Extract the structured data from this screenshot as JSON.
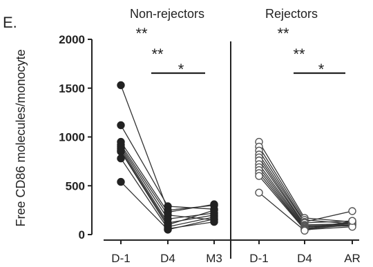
{
  "panel_label": "E.",
  "chart_data": {
    "type": "line",
    "ylabel": "Free CD86 molecules/monocyte",
    "ylim": [
      0,
      2000
    ],
    "yticks": [
      0,
      500,
      1000,
      1500,
      2000
    ],
    "grid": false,
    "panels": [
      {
        "title": "Non-rejectors",
        "categories": [
          "D-1",
          "D4",
          "M3"
        ],
        "marker": "filled-circle",
        "annotations": [
          {
            "text": "**",
            "from": "D-1",
            "to": "D4"
          },
          {
            "text": "**",
            "from": "D-1",
            "to": "M3"
          },
          {
            "text": "*",
            "from": "D4",
            "to": "M3",
            "bar": true
          }
        ],
        "series": [
          {
            "values": [
              1530,
              250,
              300
            ]
          },
          {
            "values": [
              1120,
              290,
              260
            ]
          },
          {
            "values": [
              950,
              230,
              310
            ]
          },
          {
            "values": [
              920,
              200,
              150
            ]
          },
          {
            "values": [
              900,
              160,
              220
            ]
          },
          {
            "values": [
              880,
              120,
              200
            ]
          },
          {
            "values": [
              860,
              100,
              250
            ]
          },
          {
            "values": [
              850,
              80,
              180
            ]
          },
          {
            "values": [
              780,
              60,
              130
            ]
          },
          {
            "values": [
              540,
              50,
              160
            ]
          }
        ]
      },
      {
        "title": "Rejectors",
        "categories": [
          "D-1",
          "D4",
          "AR"
        ],
        "marker": "open-circle",
        "annotations": [
          {
            "text": "**",
            "from": "D-1",
            "to": "D4"
          },
          {
            "text": "**",
            "from": "D-1",
            "to": "AR"
          },
          {
            "text": "*",
            "from": "D4",
            "to": "AR",
            "bar": true
          }
        ],
        "series": [
          {
            "values": [
              950,
              170,
              130
            ]
          },
          {
            "values": [
              900,
              150,
              110
            ]
          },
          {
            "values": [
              860,
              130,
              240
            ]
          },
          {
            "values": [
              820,
              120,
              140
            ]
          },
          {
            "values": [
              790,
              100,
              110
            ]
          },
          {
            "values": [
              760,
              90,
              100
            ]
          },
          {
            "values": [
              720,
              80,
              90
            ]
          },
          {
            "values": [
              690,
              70,
              130
            ]
          },
          {
            "values": [
              660,
              60,
              120
            ]
          },
          {
            "values": [
              630,
              55,
              100
            ]
          },
          {
            "values": [
              600,
              50,
              80
            ]
          },
          {
            "values": [
              430,
              40,
              140
            ]
          }
        ]
      }
    ]
  }
}
